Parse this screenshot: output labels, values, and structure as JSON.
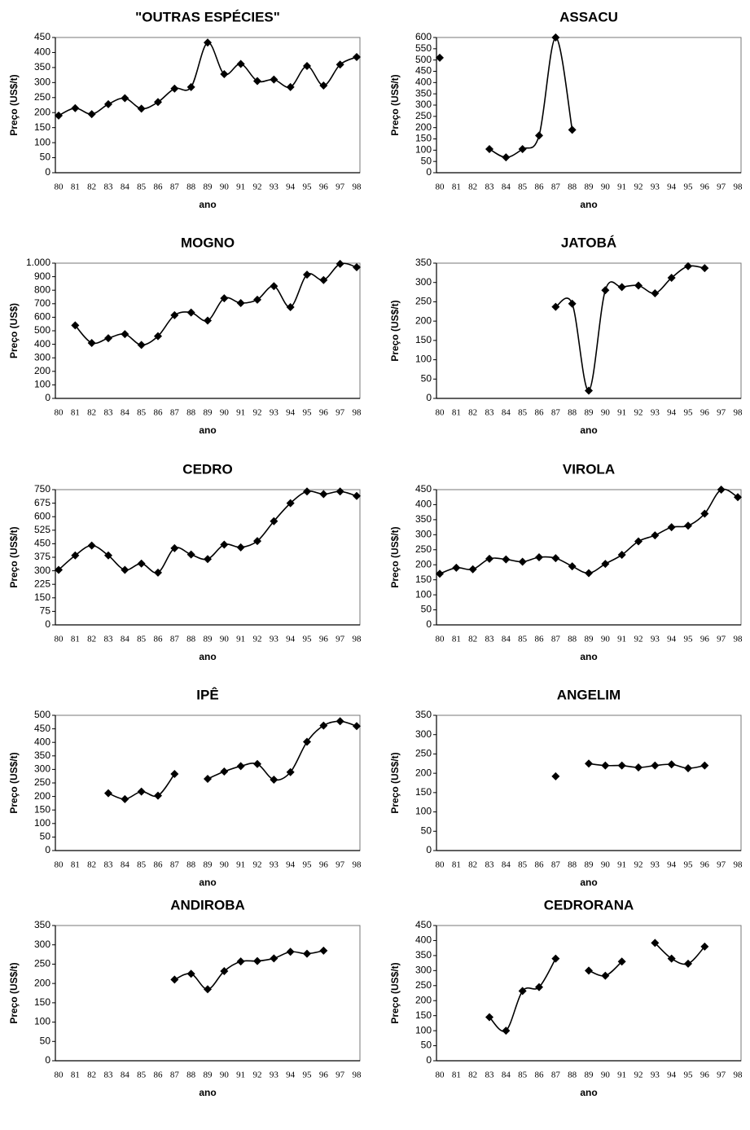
{
  "chart_data": [
    {
      "type": "line",
      "title": "\"OUTRAS ESPÉCIES\"",
      "ylabel": "Preço (US$/t)",
      "xlabel": "ano",
      "color": "#000000",
      "categories": [
        "80",
        "81",
        "82",
        "83",
        "84",
        "85",
        "86",
        "87",
        "88",
        "89",
        "90",
        "91",
        "92",
        "93",
        "94",
        "95",
        "96",
        "97",
        "98"
      ],
      "values": [
        190,
        215,
        195,
        228,
        248,
        213,
        235,
        280,
        285,
        433,
        328,
        362,
        305,
        310,
        285,
        355,
        290,
        360,
        385
      ],
      "ylim": [
        0,
        450
      ],
      "yticks": [
        0,
        50,
        100,
        150,
        200,
        250,
        300,
        350,
        400,
        450
      ]
    },
    {
      "type": "line",
      "title": "ASSACU",
      "ylabel": "Preço (US$/t)",
      "xlabel": "ano",
      "color": "#000000",
      "categories": [
        "80",
        "81",
        "82",
        "83",
        "84",
        "85",
        "86",
        "87",
        "88",
        "89",
        "90",
        "91",
        "92",
        "93",
        "94",
        "95",
        "96",
        "97",
        "98"
      ],
      "values": [
        510,
        null,
        null,
        105,
        68,
        105,
        165,
        600,
        190,
        null,
        null,
        null,
        null,
        null,
        null,
        null,
        null,
        null,
        null
      ],
      "ylim": [
        0,
        600
      ],
      "yticks": [
        0,
        50,
        100,
        150,
        200,
        250,
        300,
        350,
        400,
        450,
        500,
        550,
        600
      ]
    },
    {
      "type": "line",
      "title": "MOGNO",
      "ylabel": "Preço (US$)",
      "xlabel": "ano",
      "color": "#000000",
      "categories": [
        "80",
        "81",
        "82",
        "83",
        "84",
        "85",
        "86",
        "87",
        "88",
        "89",
        "90",
        "91",
        "92",
        "93",
        "94",
        "95",
        "96",
        "97",
        "98"
      ],
      "values": [
        null,
        540,
        410,
        445,
        475,
        395,
        460,
        615,
        635,
        575,
        740,
        705,
        730,
        830,
        675,
        915,
        875,
        995,
        970
      ],
      "ylim": [
        0,
        1000
      ],
      "yticks": [
        0,
        100,
        200,
        300,
        400,
        500,
        600,
        700,
        800,
        900,
        {
          "value": 1000,
          "label": "1.000"
        }
      ]
    },
    {
      "type": "line",
      "title": "JATOBÁ",
      "ylabel": "Preço (US$/t)",
      "xlabel": "ano",
      "color": "#000000",
      "categories": [
        "80",
        "81",
        "82",
        "83",
        "84",
        "85",
        "86",
        "87",
        "88",
        "89",
        "90",
        "91",
        "92",
        "93",
        "94",
        "95",
        "96",
        "97",
        "98"
      ],
      "values": [
        null,
        null,
        null,
        null,
        null,
        null,
        null,
        237,
        245,
        20,
        280,
        288,
        292,
        272,
        312,
        342,
        337,
        null,
        null
      ],
      "ylim": [
        0,
        350
      ],
      "yticks": [
        0,
        50,
        100,
        150,
        200,
        250,
        300,
        350
      ]
    },
    {
      "type": "line",
      "title": "CEDRO",
      "ylabel": "Preço (US$/t)",
      "xlabel": "ano",
      "color": "#000000",
      "categories": [
        "80",
        "81",
        "82",
        "83",
        "84",
        "85",
        "86",
        "87",
        "88",
        "89",
        "90",
        "91",
        "92",
        "93",
        "94",
        "95",
        "96",
        "97",
        "98"
      ],
      "values": [
        305,
        385,
        440,
        385,
        305,
        340,
        290,
        425,
        390,
        365,
        445,
        430,
        465,
        575,
        675,
        740,
        725,
        740,
        715
      ],
      "ylim": [
        0,
        750
      ],
      "yticks": [
        0,
        75,
        150,
        225,
        300,
        375,
        450,
        525,
        600,
        675,
        750
      ]
    },
    {
      "type": "line",
      "title": "VIROLA",
      "ylabel": "Preço (US$/t)",
      "xlabel": "ano",
      "color": "#000000",
      "categories": [
        "80",
        "81",
        "82",
        "83",
        "84",
        "85",
        "86",
        "87",
        "88",
        "89",
        "90",
        "91",
        "92",
        "93",
        "94",
        "95",
        "96",
        "97",
        "98"
      ],
      "values": [
        170,
        190,
        185,
        220,
        218,
        210,
        225,
        222,
        195,
        172,
        203,
        233,
        278,
        298,
        325,
        330,
        370,
        450,
        425
      ],
      "ylim": [
        0,
        450
      ],
      "yticks": [
        0,
        50,
        100,
        150,
        200,
        250,
        300,
        350,
        400,
        450
      ]
    },
    {
      "type": "line",
      "title": "IPÊ",
      "ylabel": "Preço (US$/t)",
      "xlabel": "ano",
      "color": "#000000",
      "categories": [
        "80",
        "81",
        "82",
        "83",
        "84",
        "85",
        "86",
        "87",
        "88",
        "89",
        "90",
        "91",
        "92",
        "93",
        "94",
        "95",
        "96",
        "97",
        "98"
      ],
      "values": [
        null,
        null,
        null,
        212,
        190,
        218,
        203,
        283,
        null,
        265,
        292,
        312,
        320,
        262,
        290,
        402,
        462,
        478,
        460
      ],
      "ylim": [
        0,
        500
      ],
      "yticks": [
        0,
        50,
        100,
        150,
        200,
        250,
        300,
        350,
        400,
        450,
        500
      ]
    },
    {
      "type": "line",
      "title": "ANGELIM",
      "ylabel": "Preço (US$/t)",
      "xlabel": "ano",
      "color": "#000000",
      "categories": [
        "80",
        "81",
        "82",
        "83",
        "84",
        "85",
        "86",
        "87",
        "88",
        "89",
        "90",
        "91",
        "92",
        "93",
        "94",
        "95",
        "96",
        "97",
        "98"
      ],
      "values": [
        null,
        null,
        null,
        null,
        null,
        null,
        null,
        192,
        null,
        225,
        220,
        220,
        215,
        220,
        223,
        213,
        220,
        null,
        null
      ],
      "ylim": [
        0,
        350
      ],
      "yticks": [
        0,
        50,
        100,
        150,
        200,
        250,
        300,
        350
      ]
    },
    {
      "type": "line",
      "title": "ANDIROBA",
      "ylabel": "Preço (US$/t)",
      "xlabel": "ano",
      "color": "#000000",
      "categories": [
        "80",
        "81",
        "82",
        "83",
        "84",
        "85",
        "86",
        "87",
        "88",
        "89",
        "90",
        "91",
        "92",
        "93",
        "94",
        "95",
        "96",
        "97",
        "98"
      ],
      "values": [
        null,
        null,
        null,
        null,
        null,
        null,
        null,
        210,
        225,
        185,
        232,
        257,
        258,
        265,
        282,
        277,
        285,
        null,
        null
      ],
      "ylim": [
        0,
        350
      ],
      "yticks": [
        0,
        50,
        100,
        150,
        200,
        250,
        300,
        350
      ]
    },
    {
      "type": "line",
      "title": "CEDRORANA",
      "ylabel": "Preço (US$/t)",
      "xlabel": "ano",
      "color": "#000000",
      "categories": [
        "80",
        "81",
        "82",
        "83",
        "84",
        "85",
        "86",
        "87",
        "88",
        "89",
        "90",
        "91",
        "92",
        "93",
        "94",
        "95",
        "96",
        "97",
        "98"
      ],
      "values": [
        null,
        null,
        null,
        145,
        100,
        232,
        245,
        340,
        null,
        300,
        283,
        330,
        null,
        392,
        340,
        323,
        380,
        null,
        null
      ],
      "ylim": [
        0,
        450
      ],
      "yticks": [
        0,
        50,
        100,
        150,
        200,
        250,
        300,
        350,
        400,
        450
      ]
    }
  ]
}
